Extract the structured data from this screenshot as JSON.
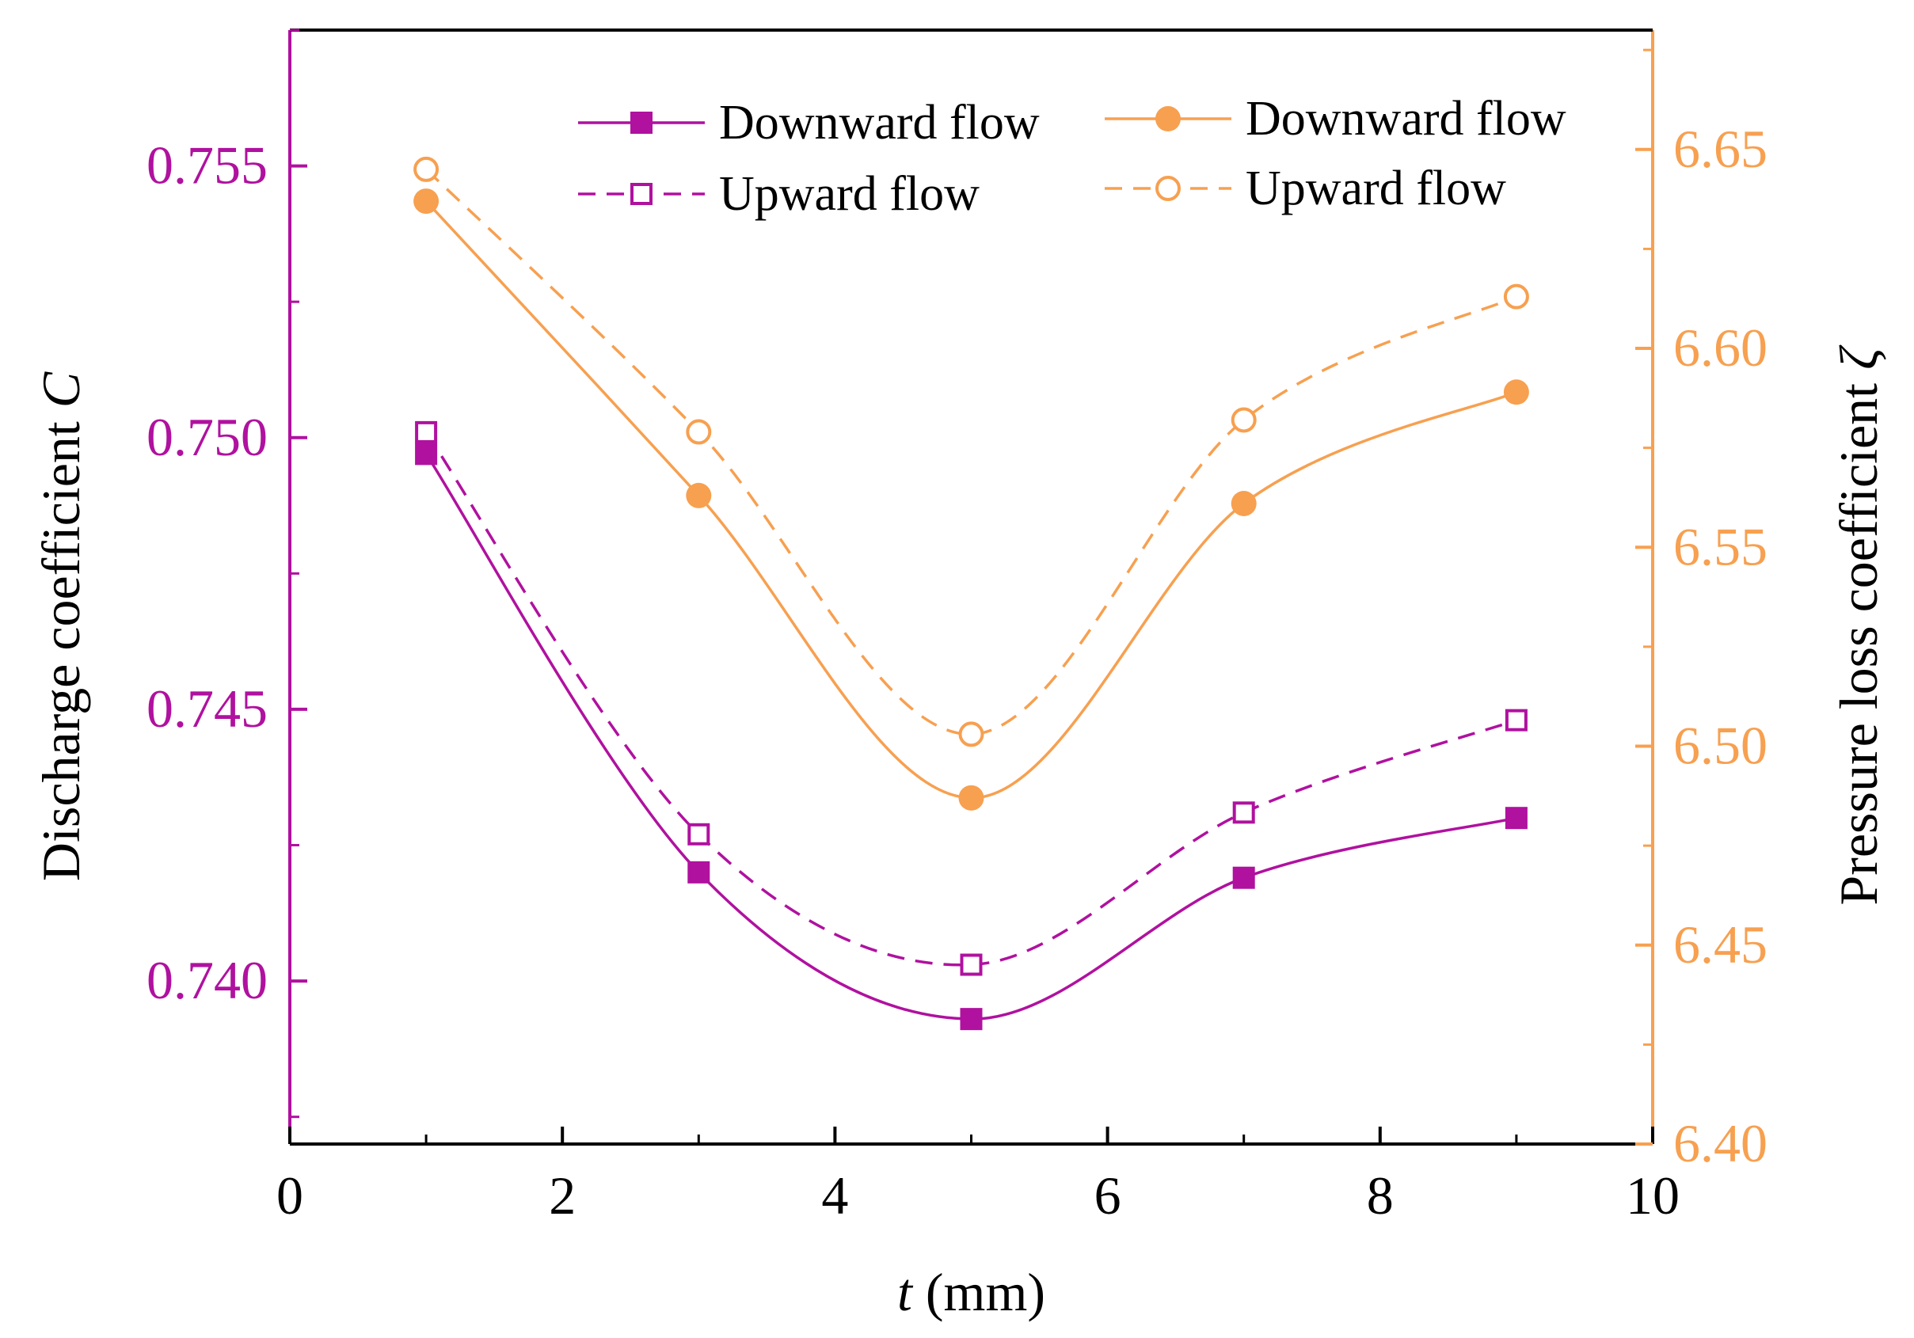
{
  "chart_data": {
    "type": "line",
    "title": "",
    "x": [
      1,
      3,
      5,
      7,
      9
    ],
    "xlabel": {
      "italic": "t",
      "text": " (mm)"
    },
    "xlim": [
      0,
      10
    ],
    "xticks": [
      0,
      2,
      4,
      6,
      8,
      10
    ],
    "xtick_labels": [
      "0",
      "2",
      "4",
      "6",
      "8",
      "10"
    ],
    "y_left": {
      "label": {
        "text": "Discharge coefficient ",
        "italic": "C"
      },
      "ylim": [
        0.737,
        0.7575
      ],
      "ticks": [
        0.74,
        0.745,
        0.75,
        0.755
      ],
      "tick_labels": [
        "0.740",
        "0.745",
        "0.750",
        "0.755"
      ],
      "color": "#B0119F"
    },
    "y_right": {
      "label": {
        "text": "Pressure loss coefficient ",
        "italic": "ζ"
      },
      "ylim": [
        6.4,
        6.68
      ],
      "ticks": [
        6.4,
        6.45,
        6.5,
        6.55,
        6.6,
        6.65
      ],
      "tick_labels": [
        "6.40",
        "6.45",
        "6.50",
        "6.55",
        "6.60",
        "6.65"
      ],
      "color": "#F7A050"
    },
    "series": [
      {
        "name": "Downward flow",
        "axis": "left",
        "marker": "square-filled",
        "dash": "solid",
        "color": "#B0119F",
        "values": [
          0.7497,
          0.742,
          0.7393,
          0.7419,
          0.743
        ]
      },
      {
        "name": "Upward flow",
        "axis": "left",
        "marker": "square-open",
        "dash": "dashed",
        "color": "#B0119F",
        "values": [
          0.7501,
          0.7427,
          0.7403,
          0.7431,
          0.7448
        ]
      },
      {
        "name": "Downward flow",
        "axis": "right",
        "marker": "circle-filled",
        "dash": "solid",
        "color": "#F7A050",
        "values": [
          6.637,
          6.563,
          6.487,
          6.561,
          6.589
        ]
      },
      {
        "name": "Upward flow",
        "axis": "right",
        "marker": "circle-open",
        "dash": "dashed",
        "color": "#F7A050",
        "values": [
          6.645,
          6.579,
          6.503,
          6.582,
          6.613
        ]
      }
    ],
    "legend": {
      "position": "top",
      "columns": [
        [
          "Downward flow",
          "Upward flow"
        ],
        [
          "Downward flow",
          "Upward flow"
        ]
      ]
    }
  }
}
